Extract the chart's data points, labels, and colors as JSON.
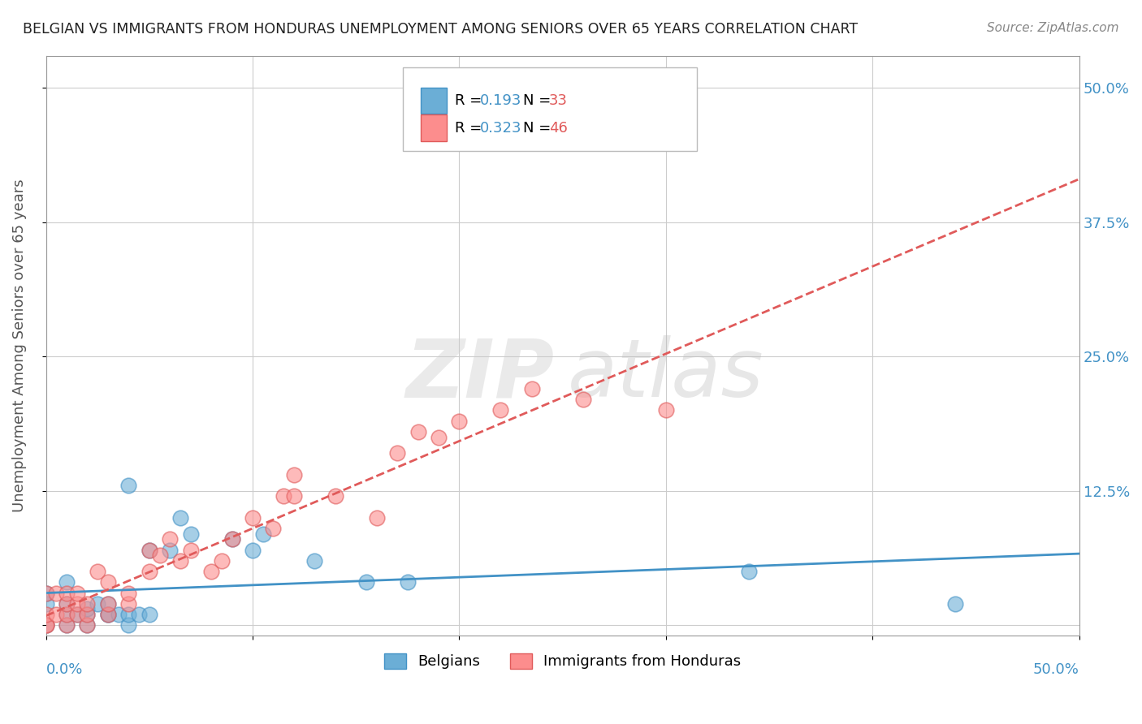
{
  "title": "BELGIAN VS IMMIGRANTS FROM HONDURAS UNEMPLOYMENT AMONG SENIORS OVER 65 YEARS CORRELATION CHART",
  "source": "Source: ZipAtlas.com",
  "ylabel": "Unemployment Among Seniors over 65 years",
  "ylabel_right_vals": [
    0.5,
    0.375,
    0.25,
    0.125,
    0.0
  ],
  "ylabel_right_labels": [
    "50.0%",
    "37.5%",
    "25.0%",
    "12.5%",
    ""
  ],
  "xlim": [
    0.0,
    0.5
  ],
  "ylim": [
    -0.01,
    0.53
  ],
  "color_belgian": "#6baed6",
  "color_honduras": "#fc8d8d",
  "color_line_belgian": "#4292c6",
  "color_line_honduras": "#e05a5a",
  "background_color": "#ffffff",
  "belgians_x": [
    0.0,
    0.0,
    0.0,
    0.01,
    0.01,
    0.01,
    0.01,
    0.015,
    0.02,
    0.02,
    0.02,
    0.025,
    0.03,
    0.03,
    0.03,
    0.035,
    0.04,
    0.04,
    0.04,
    0.045,
    0.05,
    0.05,
    0.06,
    0.065,
    0.07,
    0.09,
    0.1,
    0.105,
    0.13,
    0.155,
    0.175,
    0.34,
    0.44
  ],
  "belgians_y": [
    0.0,
    0.02,
    0.03,
    0.0,
    0.01,
    0.02,
    0.04,
    0.01,
    0.0,
    0.01,
    0.015,
    0.02,
    0.01,
    0.01,
    0.02,
    0.01,
    0.0,
    0.01,
    0.13,
    0.01,
    0.01,
    0.07,
    0.07,
    0.1,
    0.085,
    0.08,
    0.07,
    0.085,
    0.06,
    0.04,
    0.04,
    0.05,
    0.02
  ],
  "honduras_x": [
    0.0,
    0.0,
    0.0,
    0.0,
    0.005,
    0.005,
    0.01,
    0.01,
    0.01,
    0.01,
    0.015,
    0.015,
    0.015,
    0.02,
    0.02,
    0.02,
    0.025,
    0.03,
    0.03,
    0.03,
    0.04,
    0.04,
    0.05,
    0.05,
    0.055,
    0.06,
    0.065,
    0.07,
    0.08,
    0.085,
    0.09,
    0.1,
    0.11,
    0.115,
    0.12,
    0.12,
    0.14,
    0.16,
    0.17,
    0.18,
    0.19,
    0.2,
    0.22,
    0.235,
    0.26,
    0.3
  ],
  "honduras_y": [
    0.0,
    0.0,
    0.01,
    0.03,
    0.01,
    0.03,
    0.0,
    0.01,
    0.02,
    0.03,
    0.01,
    0.02,
    0.03,
    0.0,
    0.01,
    0.02,
    0.05,
    0.01,
    0.02,
    0.04,
    0.02,
    0.03,
    0.05,
    0.07,
    0.065,
    0.08,
    0.06,
    0.07,
    0.05,
    0.06,
    0.08,
    0.1,
    0.09,
    0.12,
    0.12,
    0.14,
    0.12,
    0.1,
    0.16,
    0.18,
    0.175,
    0.19,
    0.2,
    0.22,
    0.21,
    0.2
  ]
}
